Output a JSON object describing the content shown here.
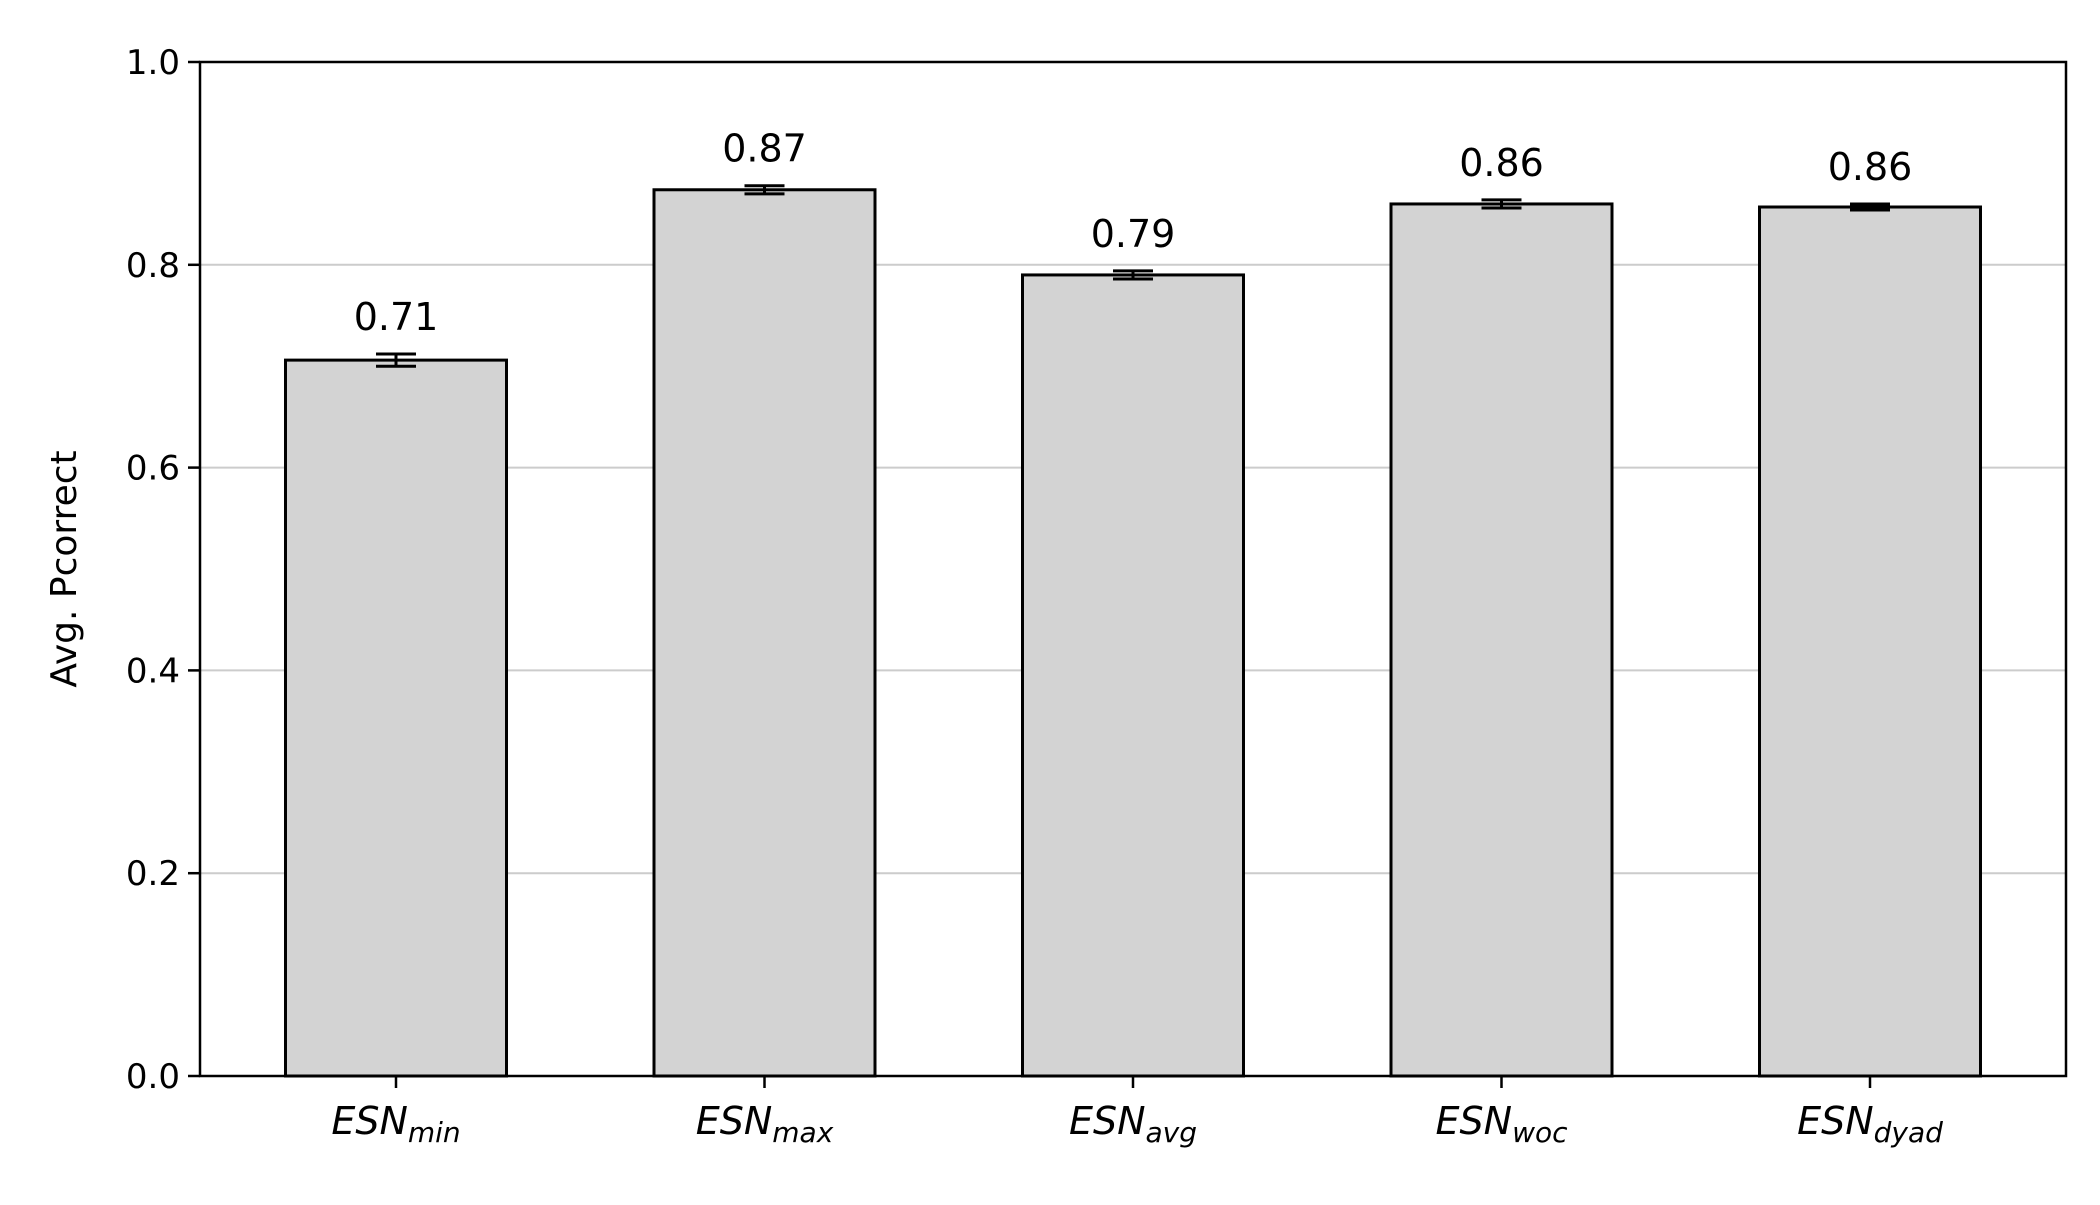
{
  "chart_data": {
    "type": "bar",
    "title": "",
    "xlabel": "",
    "ylabel": "Avg. Pcorrect",
    "ylim": [
      0,
      1.0
    ],
    "yticks": [
      "0.0",
      "0.2",
      "0.4",
      "0.6",
      "0.8",
      "1.0"
    ],
    "grid": "horizontal",
    "categories": [
      {
        "base": "ESN",
        "sub": "min"
      },
      {
        "base": "ESN",
        "sub": "max"
      },
      {
        "base": "ESN",
        "sub": "avg"
      },
      {
        "base": "ESN",
        "sub": "woc"
      },
      {
        "base": "ESN",
        "sub": "dyad"
      }
    ],
    "values": [
      0.706,
      0.874,
      0.79,
      0.86,
      0.857
    ],
    "errors": [
      0.006,
      0.004,
      0.004,
      0.004,
      0.003
    ],
    "value_labels": [
      "0.71",
      "0.87",
      "0.79",
      "0.86",
      "0.86"
    ],
    "colors": {
      "bar_fill": "#d3d3d3",
      "bar_edge": "#000000",
      "grid": "#cccccc",
      "axis": "#000000"
    }
  }
}
